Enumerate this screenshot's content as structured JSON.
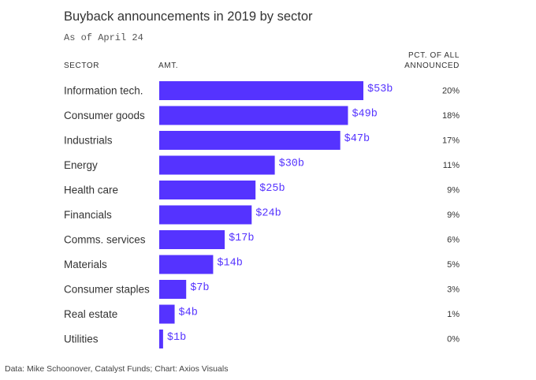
{
  "header": {
    "title": "Buyback announcements in 2019 by sector",
    "subtitle": "As of April 24",
    "col_sector": "SECTOR",
    "col_amount": "AMT.",
    "col_pct_line1": "PCT. OF ALL",
    "col_pct_line2": "ANNOUNCED"
  },
  "footer": {
    "source": "Data: Mike Schoonover, Catalyst Funds; Chart: Axios Visuals"
  },
  "colors": {
    "bar": "#5533ff",
    "bar_label": "#5533ff",
    "text": "#333333"
  },
  "chart_data": {
    "type": "bar",
    "orientation": "horizontal",
    "title": "Buyback announcements in 2019 by sector",
    "subtitle": "As of April 24",
    "unit": "billion USD",
    "categories": [
      "Information tech.",
      "Consumer goods",
      "Industrials",
      "Energy",
      "Health care",
      "Financials",
      "Comms. services",
      "Materials",
      "Consumer staples",
      "Real estate",
      "Utilities"
    ],
    "values": [
      53,
      49,
      47,
      30,
      25,
      24,
      17,
      14,
      7,
      4,
      1
    ],
    "value_labels": [
      "$53b",
      "$49b",
      "$47b",
      "$30b",
      "$25b",
      "$24b",
      "$17b",
      "$14b",
      "$7b",
      "$4b",
      "$1b"
    ],
    "pct_labels": [
      "20%",
      "18%",
      "17%",
      "11%",
      "9%",
      "9%",
      "6%",
      "5%",
      "3%",
      "1%",
      "0%"
    ],
    "xlim": [
      0,
      53
    ]
  }
}
